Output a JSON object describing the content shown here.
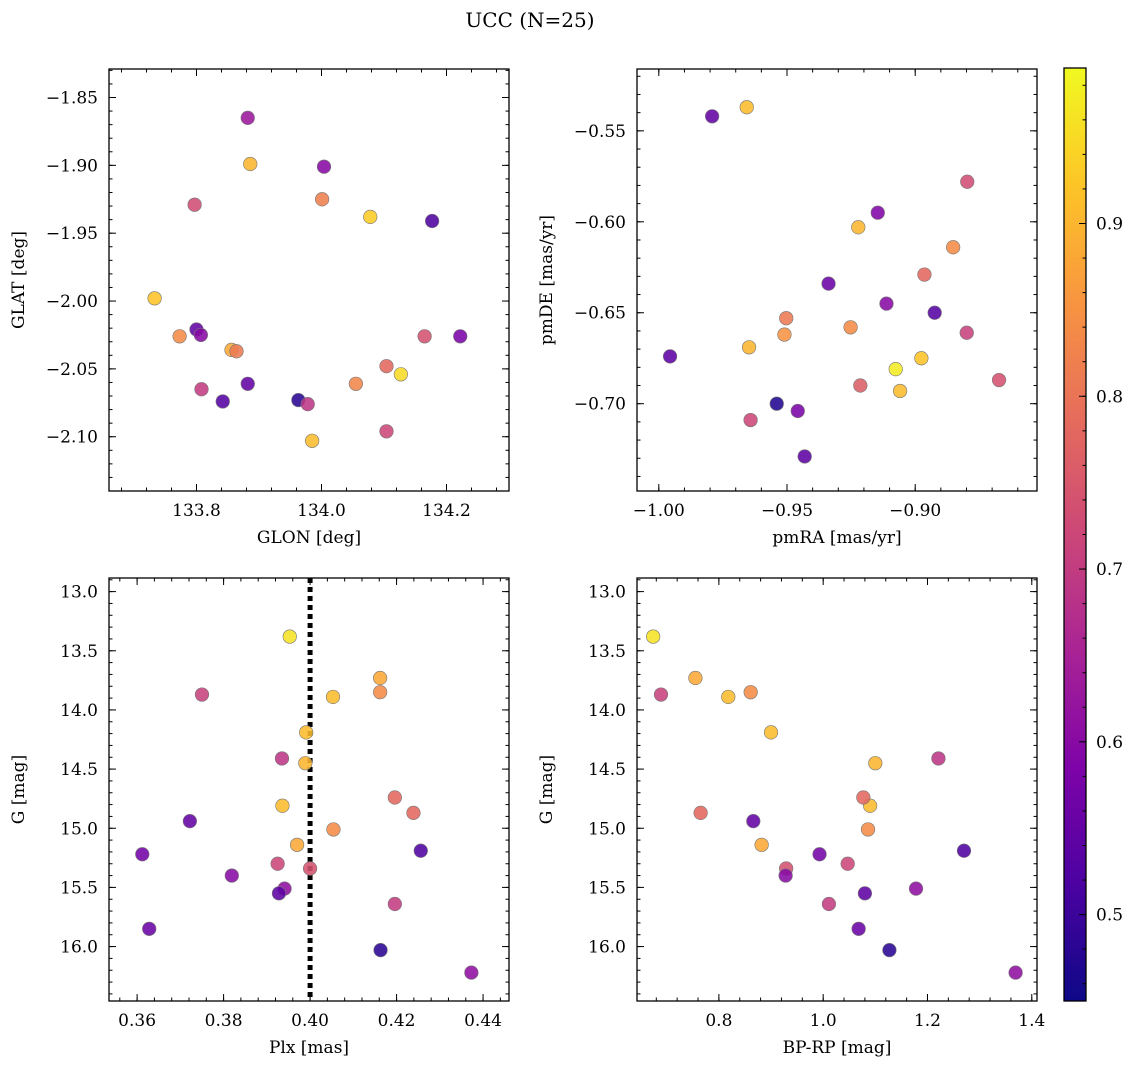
{
  "title": "UCC (N=25)",
  "chart_data": [
    {
      "type": "scatter",
      "xlabel": "GLON [deg]",
      "ylabel": "GLAT [deg]",
      "xlim": [
        133.66,
        134.3
      ],
      "ylim": [
        -2.14,
        -1.829
      ],
      "xticks": [
        133.8,
        134.0,
        134.2
      ],
      "yticks": [
        -1.85,
        -1.9,
        -1.95,
        -2.0,
        -2.05,
        -2.1
      ],
      "xtick_labels": [
        "133.8",
        "134.0",
        "134.2"
      ],
      "ytick_labels": [
        "−1.85",
        "−1.90",
        "−1.95",
        "−2.00",
        "−2.05",
        "−2.10"
      ],
      "points": [
        {
          "x": 133.882,
          "y": -1.865,
          "c": 0.63
        },
        {
          "x": 133.886,
          "y": -1.899,
          "c": 0.9
        },
        {
          "x": 134.004,
          "y": -1.901,
          "c": 0.6
        },
        {
          "x": 133.797,
          "y": -1.929,
          "c": 0.73
        },
        {
          "x": 134.001,
          "y": -1.925,
          "c": 0.82
        },
        {
          "x": 134.078,
          "y": -1.938,
          "c": 0.93
        },
        {
          "x": 134.177,
          "y": -1.941,
          "c": 0.52
        },
        {
          "x": 133.733,
          "y": -1.998,
          "c": 0.92
        },
        {
          "x": 133.773,
          "y": -2.026,
          "c": 0.84
        },
        {
          "x": 133.8,
          "y": -2.021,
          "c": 0.55
        },
        {
          "x": 133.807,
          "y": -2.025,
          "c": 0.6
        },
        {
          "x": 133.856,
          "y": -2.036,
          "c": 0.88
        },
        {
          "x": 133.864,
          "y": -2.037,
          "c": 0.81
        },
        {
          "x": 134.165,
          "y": -2.026,
          "c": 0.74
        },
        {
          "x": 134.222,
          "y": -2.026,
          "c": 0.58
        },
        {
          "x": 134.104,
          "y": -2.048,
          "c": 0.78
        },
        {
          "x": 134.127,
          "y": -2.054,
          "c": 0.95
        },
        {
          "x": 134.055,
          "y": -2.061,
          "c": 0.83
        },
        {
          "x": 133.882,
          "y": -2.061,
          "c": 0.55
        },
        {
          "x": 133.808,
          "y": -2.065,
          "c": 0.7
        },
        {
          "x": 133.842,
          "y": -2.074,
          "c": 0.53
        },
        {
          "x": 133.963,
          "y": -2.073,
          "c": 0.48
        },
        {
          "x": 133.978,
          "y": -2.076,
          "c": 0.69
        },
        {
          "x": 134.104,
          "y": -2.096,
          "c": 0.72
        },
        {
          "x": 133.985,
          "y": -2.103,
          "c": 0.91
        }
      ]
    },
    {
      "type": "scatter",
      "xlabel": "pmRA [mas/yr]",
      "ylabel": "pmDE [mas/yr]",
      "xlim": [
        -1.0085,
        -0.8525
      ],
      "ylim": [
        -0.748,
        -0.516
      ],
      "xticks": [
        -1.0,
        -0.95,
        -0.9
      ],
      "yticks": [
        -0.55,
        -0.6,
        -0.65,
        -0.7
      ],
      "xtick_labels": [
        "−1.00",
        "−0.95",
        "−0.90"
      ],
      "ytick_labels": [
        "−0.55",
        "−0.60",
        "−0.65",
        "−0.70"
      ],
      "points": [
        {
          "x": -0.9792,
          "y": -0.542,
          "c": 0.55
        },
        {
          "x": -0.9657,
          "y": -0.537,
          "c": 0.91
        },
        {
          "x": -0.8797,
          "y": -0.578,
          "c": 0.73
        },
        {
          "x": -0.9146,
          "y": -0.595,
          "c": 0.59
        },
        {
          "x": -0.9222,
          "y": -0.603,
          "c": 0.9
        },
        {
          "x": -0.8852,
          "y": -0.614,
          "c": 0.84
        },
        {
          "x": -0.8964,
          "y": -0.629,
          "c": 0.78
        },
        {
          "x": -0.9338,
          "y": -0.634,
          "c": 0.56
        },
        {
          "x": -0.9112,
          "y": -0.645,
          "c": 0.6
        },
        {
          "x": -0.8924,
          "y": -0.65,
          "c": 0.53
        },
        {
          "x": -0.9503,
          "y": -0.653,
          "c": 0.81
        },
        {
          "x": -0.9252,
          "y": -0.658,
          "c": 0.84
        },
        {
          "x": -0.951,
          "y": -0.662,
          "c": 0.85
        },
        {
          "x": -0.8799,
          "y": -0.661,
          "c": 0.71
        },
        {
          "x": -0.9956,
          "y": -0.674,
          "c": 0.54
        },
        {
          "x": -0.9648,
          "y": -0.669,
          "c": 0.9
        },
        {
          "x": -0.8976,
          "y": -0.675,
          "c": 0.92
        },
        {
          "x": -0.9076,
          "y": -0.681,
          "c": 0.97
        },
        {
          "x": -0.8673,
          "y": -0.687,
          "c": 0.74
        },
        {
          "x": -0.9214,
          "y": -0.69,
          "c": 0.76
        },
        {
          "x": -0.9059,
          "y": -0.693,
          "c": 0.91
        },
        {
          "x": -0.954,
          "y": -0.7,
          "c": 0.47
        },
        {
          "x": -0.9458,
          "y": -0.704,
          "c": 0.58
        },
        {
          "x": -0.9642,
          "y": -0.709,
          "c": 0.72
        },
        {
          "x": -0.9431,
          "y": -0.729,
          "c": 0.54
        }
      ]
    },
    {
      "type": "scatter",
      "xlabel": "Plx [mas]",
      "ylabel": "G [mag]",
      "xlim": [
        0.3535,
        0.446
      ],
      "ylim": [
        16.46,
        12.885
      ],
      "xticks": [
        0.36,
        0.38,
        0.4,
        0.42,
        0.44
      ],
      "yticks": [
        13.0,
        13.5,
        14.0,
        14.5,
        15.0,
        15.5,
        16.0
      ],
      "xtick_labels": [
        "0.36",
        "0.38",
        "0.40",
        "0.42",
        "0.44"
      ],
      "ytick_labels": [
        "13.0",
        "13.5",
        "14.0",
        "14.5",
        "15.0",
        "15.5",
        "16.0"
      ],
      "vline": 0.4,
      "points": [
        {
          "x": 0.3953,
          "y": 13.38,
          "c": 0.96
        },
        {
          "x": 0.4162,
          "y": 13.73,
          "c": 0.88
        },
        {
          "x": 0.375,
          "y": 13.87,
          "c": 0.71
        },
        {
          "x": 0.4162,
          "y": 13.85,
          "c": 0.84
        },
        {
          "x": 0.4053,
          "y": 13.89,
          "c": 0.91
        },
        {
          "x": 0.3991,
          "y": 14.19,
          "c": 0.91
        },
        {
          "x": 0.3989,
          "y": 14.45,
          "c": 0.9
        },
        {
          "x": 0.3935,
          "y": 14.41,
          "c": 0.69
        },
        {
          "x": 0.3936,
          "y": 14.81,
          "c": 0.91
        },
        {
          "x": 0.4196,
          "y": 14.74,
          "c": 0.78
        },
        {
          "x": 0.4239,
          "y": 14.87,
          "c": 0.78
        },
        {
          "x": 0.3722,
          "y": 14.94,
          "c": 0.55
        },
        {
          "x": 0.4054,
          "y": 15.01,
          "c": 0.84
        },
        {
          "x": 0.397,
          "y": 15.14,
          "c": 0.88
        },
        {
          "x": 0.3612,
          "y": 15.22,
          "c": 0.57
        },
        {
          "x": 0.4256,
          "y": 15.19,
          "c": 0.52
        },
        {
          "x": 0.3925,
          "y": 15.3,
          "c": 0.72
        },
        {
          "x": 0.4,
          "y": 15.34,
          "c": 0.74
        },
        {
          "x": 0.3819,
          "y": 15.4,
          "c": 0.6
        },
        {
          "x": 0.3941,
          "y": 15.51,
          "c": 0.61
        },
        {
          "x": 0.3928,
          "y": 15.55,
          "c": 0.54
        },
        {
          "x": 0.4196,
          "y": 15.64,
          "c": 0.7
        },
        {
          "x": 0.3628,
          "y": 15.85,
          "c": 0.56
        },
        {
          "x": 0.4163,
          "y": 16.03,
          "c": 0.48
        },
        {
          "x": 0.4373,
          "y": 16.22,
          "c": 0.61
        }
      ]
    },
    {
      "type": "scatter",
      "xlabel": "BP-RP [mag]",
      "ylabel": "G [mag]",
      "xlim": [
        0.643,
        1.41
      ],
      "ylim": [
        16.46,
        12.885
      ],
      "xticks": [
        0.8,
        1.0,
        1.2,
        1.4
      ],
      "yticks": [
        13.0,
        13.5,
        14.0,
        14.5,
        15.0,
        15.5,
        16.0
      ],
      "xtick_labels": [
        "0.8",
        "1.0",
        "1.2",
        "1.4"
      ],
      "ytick_labels": [
        "13.0",
        "13.5",
        "14.0",
        "14.5",
        "15.0",
        "15.5",
        "16.0"
      ],
      "points": [
        {
          "x": 0.674,
          "y": 13.38,
          "c": 0.96
        },
        {
          "x": 0.755,
          "y": 13.73,
          "c": 0.88
        },
        {
          "x": 0.689,
          "y": 13.87,
          "c": 0.71
        },
        {
          "x": 0.861,
          "y": 13.85,
          "c": 0.84
        },
        {
          "x": 0.818,
          "y": 13.89,
          "c": 0.91
        },
        {
          "x": 0.9,
          "y": 14.19,
          "c": 0.91
        },
        {
          "x": 1.1,
          "y": 14.45,
          "c": 0.9
        },
        {
          "x": 1.221,
          "y": 14.41,
          "c": 0.69
        },
        {
          "x": 1.09,
          "y": 14.81,
          "c": 0.91
        },
        {
          "x": 1.077,
          "y": 14.74,
          "c": 0.78
        },
        {
          "x": 0.765,
          "y": 14.87,
          "c": 0.78
        },
        {
          "x": 0.866,
          "y": 14.94,
          "c": 0.55
        },
        {
          "x": 1.086,
          "y": 15.01,
          "c": 0.84
        },
        {
          "x": 0.882,
          "y": 15.14,
          "c": 0.88
        },
        {
          "x": 0.993,
          "y": 15.22,
          "c": 0.57
        },
        {
          "x": 1.27,
          "y": 15.19,
          "c": 0.52
        },
        {
          "x": 1.047,
          "y": 15.3,
          "c": 0.72
        },
        {
          "x": 0.929,
          "y": 15.34,
          "c": 0.74
        },
        {
          "x": 0.928,
          "y": 15.4,
          "c": 0.6
        },
        {
          "x": 1.178,
          "y": 15.51,
          "c": 0.61
        },
        {
          "x": 1.08,
          "y": 15.55,
          "c": 0.54
        },
        {
          "x": 1.011,
          "y": 15.64,
          "c": 0.7
        },
        {
          "x": 1.068,
          "y": 15.85,
          "c": 0.56
        },
        {
          "x": 1.127,
          "y": 16.03,
          "c": 0.48
        },
        {
          "x": 1.369,
          "y": 16.22,
          "c": 0.61
        }
      ]
    }
  ],
  "colorbar": {
    "cmap": "plasma",
    "range": [
      0.45,
      0.99
    ],
    "ticks": [
      0.5,
      0.6,
      0.7,
      0.8,
      0.9
    ],
    "tick_labels": [
      "0.5",
      "0.6",
      "0.7",
      "0.8",
      "0.9"
    ]
  }
}
